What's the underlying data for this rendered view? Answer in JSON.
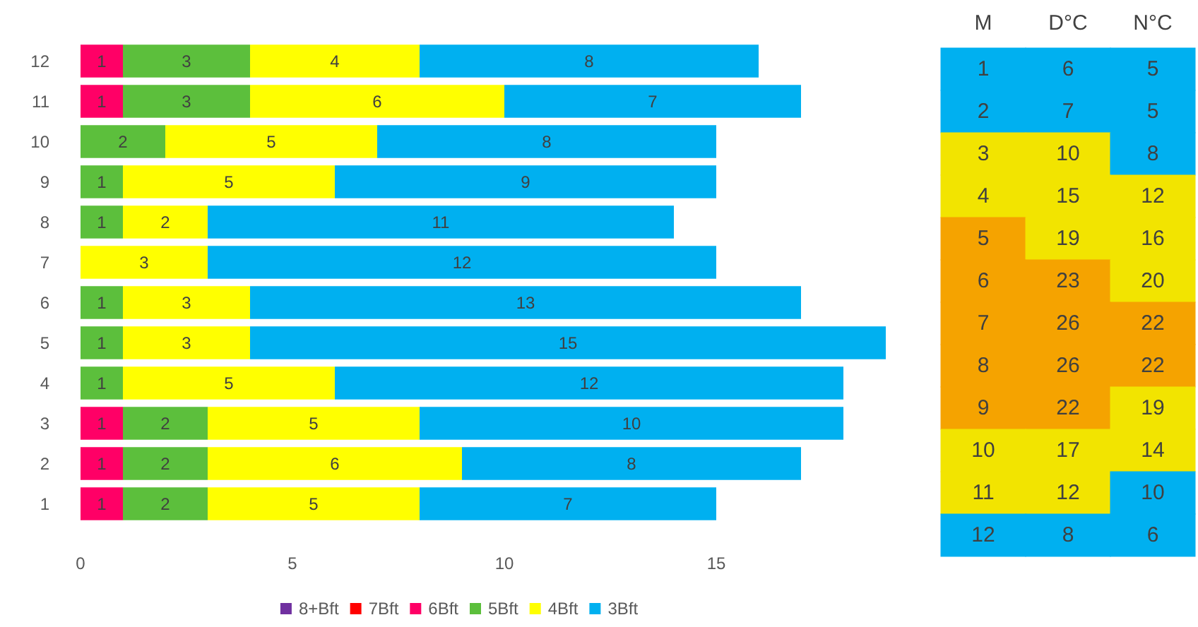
{
  "chart_data": [
    {
      "type": "bar",
      "orientation": "horizontal",
      "stacked": true,
      "data_labels": true,
      "grid": false,
      "legend": "bottom",
      "categories": [
        "12",
        "11",
        "10",
        "9",
        "8",
        "7",
        "6",
        "5",
        "4",
        "3",
        "2",
        "1"
      ],
      "series": [
        {
          "name": "8+Bft",
          "color": "#7030a0",
          "values": [
            null,
            null,
            null,
            null,
            null,
            null,
            null,
            null,
            null,
            null,
            null,
            null
          ]
        },
        {
          "name": "7Bft",
          "color": "#ff0000",
          "values": [
            null,
            null,
            null,
            null,
            null,
            null,
            null,
            null,
            null,
            null,
            null,
            null
          ]
        },
        {
          "name": "6Bft",
          "color": "#ff0066",
          "values": [
            1,
            1,
            null,
            null,
            null,
            null,
            null,
            null,
            null,
            1,
            1,
            1
          ]
        },
        {
          "name": "5Bft",
          "color": "#5cbf3c",
          "values": [
            3,
            3,
            2,
            1,
            1,
            null,
            1,
            1,
            1,
            2,
            2,
            2
          ]
        },
        {
          "name": "4Bft",
          "color": "#ffff00",
          "values": [
            4,
            6,
            5,
            5,
            2,
            3,
            3,
            3,
            5,
            5,
            6,
            5
          ]
        },
        {
          "name": "3Bft",
          "color": "#00b0f0",
          "values": [
            8,
            7,
            8,
            9,
            11,
            12,
            13,
            15,
            12,
            10,
            8,
            7
          ]
        }
      ],
      "xlim": [
        0,
        19
      ],
      "xticks": [
        0,
        5,
        10,
        15
      ]
    },
    {
      "type": "heatmap",
      "data_labels": true,
      "tick_labels": "x",
      "categories": [
        "M",
        "D°C",
        "N°C"
      ],
      "y_categories": [
        "1",
        "2",
        "3",
        "4",
        "5",
        "6",
        "7",
        "8",
        "9",
        "10",
        "11",
        "12"
      ],
      "cells": [
        [
          1,
          6,
          5
        ],
        [
          2,
          7,
          5
        ],
        [
          3,
          10,
          8
        ],
        [
          4,
          15,
          12
        ],
        [
          5,
          19,
          16
        ],
        [
          6,
          23,
          20
        ],
        [
          7,
          26,
          22
        ],
        [
          8,
          26,
          22
        ],
        [
          9,
          22,
          19
        ],
        [
          10,
          17,
          14
        ],
        [
          11,
          12,
          10
        ],
        [
          12,
          8,
          6
        ]
      ],
      "colors": [
        [
          "#00b0f0",
          "#00b0f0",
          "#00b0f0"
        ],
        [
          "#00b0f0",
          "#00b0f0",
          "#00b0f0"
        ],
        [
          "#f2e400",
          "#f2e400",
          "#00b0f0"
        ],
        [
          "#f2e400",
          "#f2e400",
          "#f2e400"
        ],
        [
          "#f5a300",
          "#f2e400",
          "#f2e400"
        ],
        [
          "#f5a300",
          "#f5a300",
          "#f2e400"
        ],
        [
          "#f5a300",
          "#f5a300",
          "#f5a300"
        ],
        [
          "#f5a300",
          "#f5a300",
          "#f5a300"
        ],
        [
          "#f5a300",
          "#f5a300",
          "#f2e400"
        ],
        [
          "#f2e400",
          "#f2e400",
          "#f2e400"
        ],
        [
          "#f2e400",
          "#f2e400",
          "#00b0f0"
        ],
        [
          "#00b0f0",
          "#00b0f0",
          "#00b0f0"
        ]
      ]
    }
  ]
}
